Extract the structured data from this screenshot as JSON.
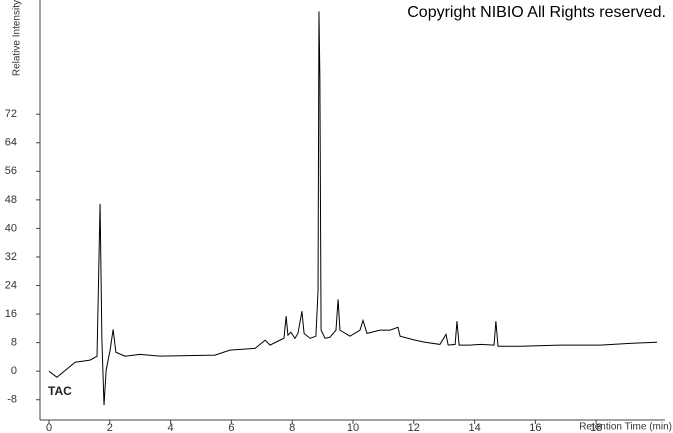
{
  "chart_data": {
    "type": "line",
    "title": "Copyright NIBIO All Rights reserved.",
    "annotation": "TAC",
    "x_label": "Retention Time (min)",
    "y_label": "Relative Intensity",
    "color": "#000000",
    "x": [
      0,
      0.26,
      0.86,
      1.35,
      1.58,
      1.68,
      1.74,
      1.81,
      1.88,
      2.01,
      2.11,
      2.2,
      2.5,
      2.99,
      3.65,
      5.46,
      5.95,
      6.78,
      7.11,
      7.27,
      7.6,
      7.73,
      7.8,
      7.86,
      7.96,
      8.09,
      8.19,
      8.32,
      8.39,
      8.59,
      8.78,
      8.85,
      8.88,
      8.91,
      8.95,
      9.08,
      9.24,
      9.44,
      9.51,
      9.57,
      9.9,
      10.23,
      10.33,
      10.46,
      10.89,
      11.22,
      11.48,
      11.55,
      12.04,
      12.37,
      12.86,
      13.06,
      13.13,
      13.36,
      13.42,
      13.49,
      13.85,
      14.18,
      14.64,
      14.7,
      14.77,
      15.49,
      16.81,
      18.13,
      19.11,
      20
    ],
    "values": [
      0,
      -1.7,
      2.5,
      3.1,
      4.2,
      46.9,
      8.7,
      -9.5,
      0.3,
      5.9,
      11.7,
      5.3,
      4.2,
      4.7,
      4.2,
      4.5,
      5.9,
      6.4,
      8.7,
      7.3,
      8.7,
      9.2,
      15.4,
      10.1,
      10.9,
      9.2,
      10.6,
      16.8,
      10.6,
      9.2,
      9.8,
      22.6,
      100.8,
      82.7,
      11.5,
      9.2,
      9.5,
      11.5,
      20.1,
      11.5,
      9.8,
      11.5,
      14.2,
      10.6,
      11.5,
      11.5,
      12.3,
      9.8,
      8.7,
      8.1,
      7.5,
      10.3,
      7.3,
      7.5,
      14,
      7.3,
      7.3,
      7.5,
      7.3,
      14,
      7,
      7,
      7.3,
      7.3,
      7.8,
      8.1
    ],
    "xlim": [
      0,
      20
    ],
    "xticks": [
      0,
      2,
      4,
      6,
      8,
      10,
      12,
      14,
      16,
      18
    ],
    "ylim": [
      -12,
      104
    ],
    "yticks": [
      -8,
      0,
      8,
      16,
      24,
      32,
      40,
      48,
      56,
      64,
      72
    ]
  }
}
